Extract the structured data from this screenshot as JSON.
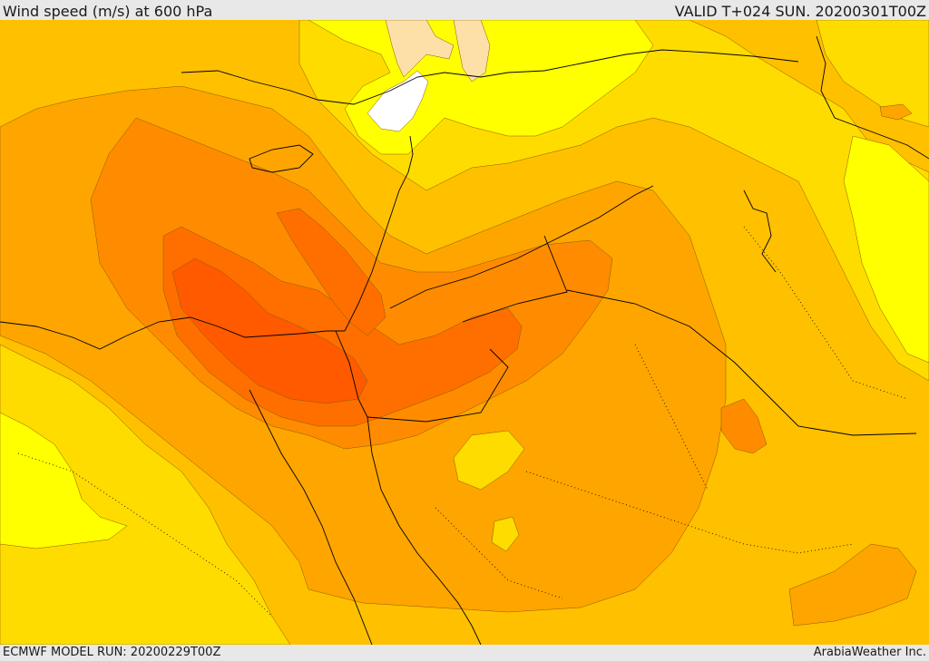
{
  "header": {
    "title": "Wind speed (m/s) at 600 hPa",
    "valid": "VALID T+024 SUN. 20200301T00Z"
  },
  "footer": {
    "model_run": "ECMWF MODEL RUN: 20200229T00Z",
    "credit": "ArabiaWeather Inc."
  },
  "colors": {
    "white": "#ffffff",
    "cream": "#fde0a8",
    "yellow": "#ffff00",
    "gold": "#ffdc00",
    "amber": "#ffc000",
    "orange_light": "#ffa500",
    "orange": "#ff8c00",
    "orange_dark": "#ff6f00",
    "red_orange": "#ff5a00"
  }
}
